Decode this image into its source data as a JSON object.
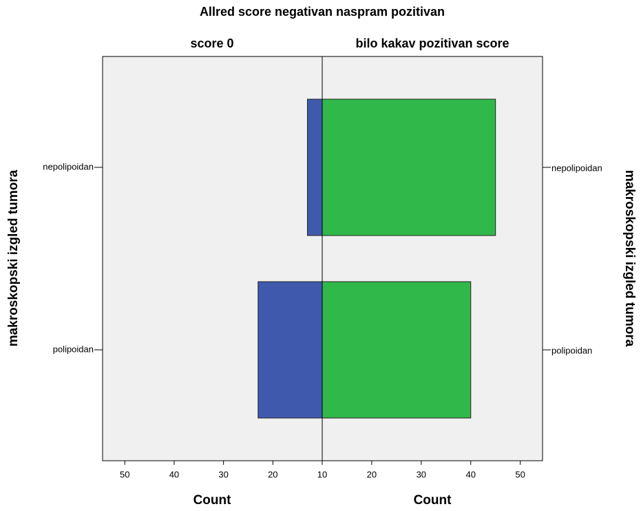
{
  "chart_data": {
    "type": "pyramid",
    "title": "Allred score negativan naspram pozitivan",
    "categories": [
      "nepolipoidan",
      "polipoidan"
    ],
    "series": [
      {
        "name": "score 0",
        "color": "#3f59ad",
        "values": [
          13,
          23
        ]
      },
      {
        "name": "bilo kakav pozitivan score",
        "color": "#30b84a",
        "values": [
          45,
          40
        ]
      }
    ],
    "x_label": "Count",
    "y_label": "makroskopski izgled tumora",
    "xlim": [
      10,
      54.5
    ],
    "xticks_left": [
      50,
      40,
      30,
      20
    ],
    "xticks_right": [
      10,
      20,
      30,
      40,
      50
    ]
  }
}
